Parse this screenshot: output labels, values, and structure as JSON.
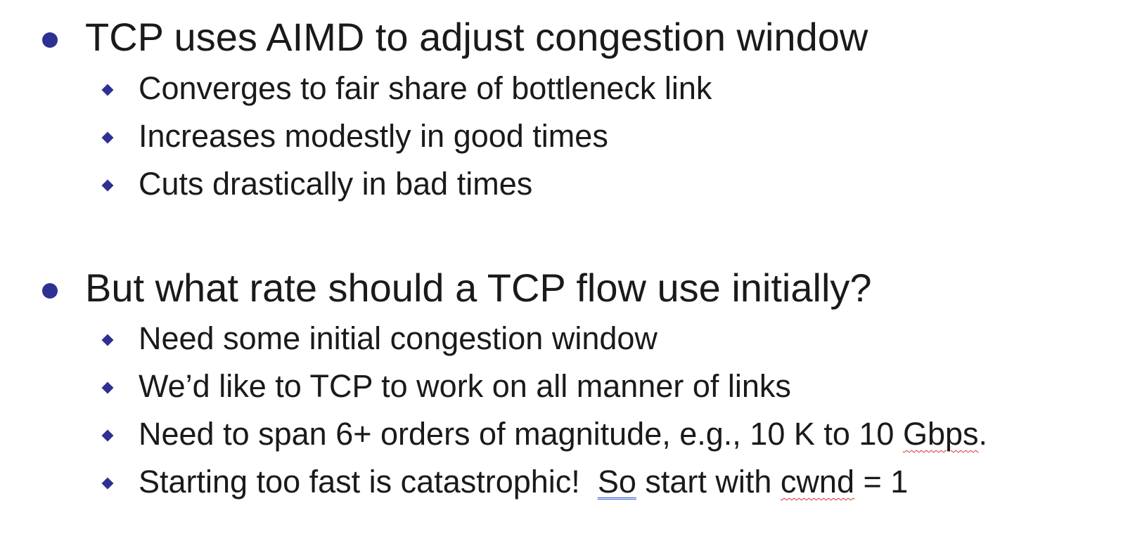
{
  "bullets": [
    {
      "text": "TCP uses AIMD to adjust congestion window",
      "subs": [
        "Converges to fair share of bottleneck link",
        "Increases modestly in good times",
        "Cuts drastically in bad times"
      ]
    },
    {
      "text": "But what rate should a TCP flow use initially?",
      "subs": [
        "Need some initial congestion window",
        "We’d like to TCP to work on all manner of links",
        {
          "pre": "Need to span 6+ orders of magnitude, e.g., 10 K to 10 ",
          "flagged": "Gbps",
          "post": "."
        },
        {
          "pre": "Starting too fast is catastrophic!  ",
          "flagged_grammar": "So",
          "mid": " start with ",
          "flagged_spelling": "cwnd",
          "post": " = 1"
        }
      ]
    }
  ],
  "colors": {
    "bullet_marker": "#2e3192",
    "text": "#1a1a1a",
    "spelling_underline": "#d0312d",
    "grammar_underline": "#3b5bd6"
  }
}
